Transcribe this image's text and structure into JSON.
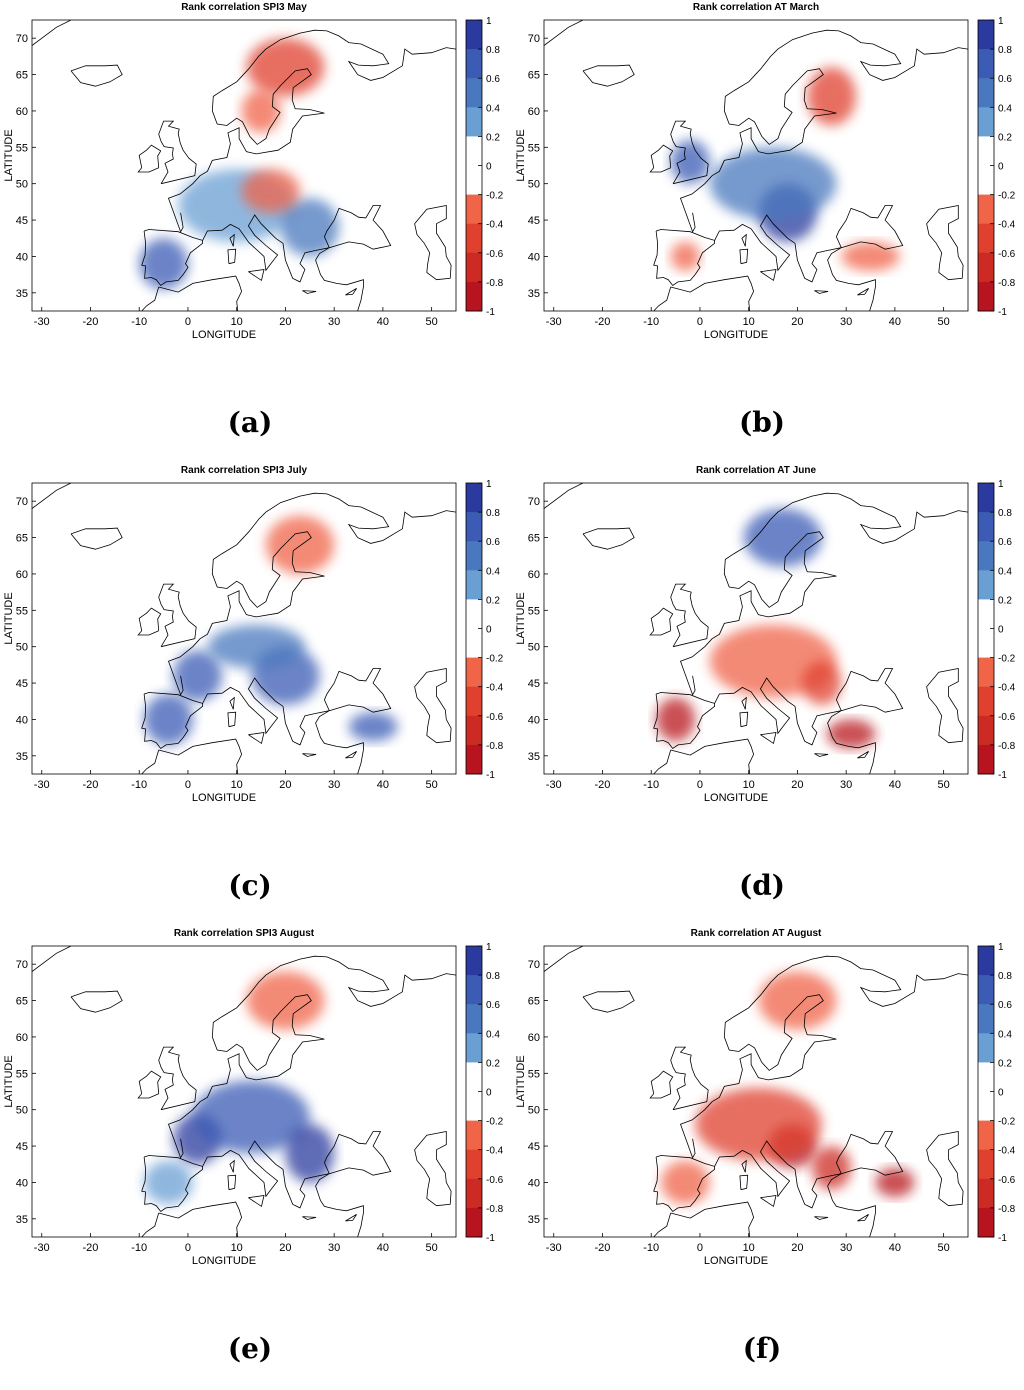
{
  "panels": [
    {
      "id": "a",
      "title": "Rank correlation SPI3 May",
      "label": "(a)",
      "blobs": [
        {
          "lon": -5,
          "lat": 39,
          "rx": 5,
          "ry": 3.5,
          "v": 0.7
        },
        {
          "lon": 10,
          "lat": 47,
          "rx": 12,
          "ry": 5,
          "v": 0.3
        },
        {
          "lon": 25,
          "lat": 44,
          "rx": 6,
          "ry": 4,
          "v": 0.45
        },
        {
          "lon": 20,
          "lat": 66,
          "rx": 8,
          "ry": 4,
          "v": -0.4
        },
        {
          "lon": 15,
          "lat": 60,
          "rx": 4,
          "ry": 3,
          "v": -0.3
        },
        {
          "lon": 17,
          "lat": 49,
          "rx": 6,
          "ry": 3,
          "v": -0.3
        }
      ]
    },
    {
      "id": "b",
      "title": "Rank correlation AT March",
      "label": "(b)",
      "blobs": [
        {
          "lon": -2,
          "lat": 53,
          "rx": 4,
          "ry": 3,
          "v": 0.6
        },
        {
          "lon": 18,
          "lat": 46,
          "rx": 6,
          "ry": 4,
          "v": 0.8
        },
        {
          "lon": 15,
          "lat": 50,
          "rx": 13,
          "ry": 5,
          "v": 0.4
        },
        {
          "lon": 27,
          "lat": 62,
          "rx": 5,
          "ry": 4,
          "v": -0.4
        },
        {
          "lon": -3,
          "lat": 40,
          "rx": 3,
          "ry": 2,
          "v": -0.3
        },
        {
          "lon": 35,
          "lat": 40,
          "rx": 6,
          "ry": 2,
          "v": -0.25
        }
      ]
    },
    {
      "id": "c",
      "title": "Rank correlation SPI3 July",
      "label": "(c)",
      "blobs": [
        {
          "lon": -4,
          "lat": 40,
          "rx": 5,
          "ry": 3.5,
          "v": 0.7
        },
        {
          "lon": 2,
          "lat": 46,
          "rx": 5,
          "ry": 3.5,
          "v": 0.7
        },
        {
          "lon": 20,
          "lat": 46,
          "rx": 7,
          "ry": 4,
          "v": 0.7
        },
        {
          "lon": 14,
          "lat": 50,
          "rx": 10,
          "ry": 3,
          "v": 0.5
        },
        {
          "lon": 38,
          "lat": 39,
          "rx": 5,
          "ry": 2,
          "v": 0.6
        },
        {
          "lon": 23,
          "lat": 64,
          "rx": 7,
          "ry": 4,
          "v": -0.25
        }
      ]
    },
    {
      "id": "d",
      "title": "Rank correlation AT June",
      "label": "(d)",
      "blobs": [
        {
          "lon": 17,
          "lat": 65,
          "rx": 8,
          "ry": 4,
          "v": 0.6
        },
        {
          "lon": -5,
          "lat": 40,
          "rx": 4,
          "ry": 3,
          "v": -0.8
        },
        {
          "lon": 31,
          "lat": 38,
          "rx": 5,
          "ry": 2,
          "v": -0.8
        },
        {
          "lon": 15,
          "lat": 48,
          "rx": 13,
          "ry": 5,
          "v": -0.35
        },
        {
          "lon": 25,
          "lat": 45,
          "rx": 4,
          "ry": 3,
          "v": -0.5
        }
      ]
    },
    {
      "id": "e",
      "title": "Rank correlation SPI3 August",
      "label": "(e)",
      "blobs": [
        {
          "lon": 2,
          "lat": 46,
          "rx": 5,
          "ry": 3.5,
          "v": 0.8
        },
        {
          "lon": 13,
          "lat": 49,
          "rx": 12,
          "ry": 5,
          "v": 0.6
        },
        {
          "lon": 25,
          "lat": 44,
          "rx": 5,
          "ry": 4,
          "v": 0.8
        },
        {
          "lon": -4,
          "lat": 40,
          "rx": 5,
          "ry": 3,
          "v": 0.35
        },
        {
          "lon": 20,
          "lat": 65,
          "rx": 8,
          "ry": 4,
          "v": -0.3
        }
      ]
    },
    {
      "id": "f",
      "title": "Rank correlation AT August",
      "label": "(f)",
      "blobs": [
        {
          "lon": 19,
          "lat": 45,
          "rx": 5,
          "ry": 3,
          "v": -0.8
        },
        {
          "lon": 12,
          "lat": 48,
          "rx": 13,
          "ry": 5,
          "v": -0.5
        },
        {
          "lon": 40,
          "lat": 40,
          "rx": 4,
          "ry": 2,
          "v": -0.8
        },
        {
          "lon": 27,
          "lat": 42,
          "rx": 4,
          "ry": 3,
          "v": -0.6
        },
        {
          "lon": -3,
          "lat": 40,
          "rx": 5,
          "ry": 3,
          "v": -0.2
        },
        {
          "lon": 20,
          "lat": 65,
          "rx": 8,
          "ry": 4,
          "v": -0.3
        }
      ]
    }
  ],
  "axes": {
    "xlabel": "LONGITUDE",
    "ylabel": "LATITUDE",
    "xlim": [
      -32,
      55
    ],
    "ylim": [
      32.5,
      72.5
    ],
    "xticks": [
      -30,
      -20,
      -10,
      0,
      10,
      20,
      30,
      40,
      50
    ],
    "yticks": [
      35,
      40,
      45,
      50,
      55,
      60,
      65,
      70
    ]
  },
  "colorbar": {
    "ticks": [
      "1",
      "0.8",
      "0.6",
      "0.4",
      "0.2",
      "0",
      "-0.2",
      "-0.4",
      "-0.6",
      "-0.8",
      "-1"
    ],
    "colors": [
      "#2b3a9e",
      "#3b5bb5",
      "#4a78be",
      "#6a9fd4",
      "#ffffff",
      "#ffffff",
      "#f06448",
      "#e0412f",
      "#cd2a23",
      "#b8141f"
    ]
  }
}
